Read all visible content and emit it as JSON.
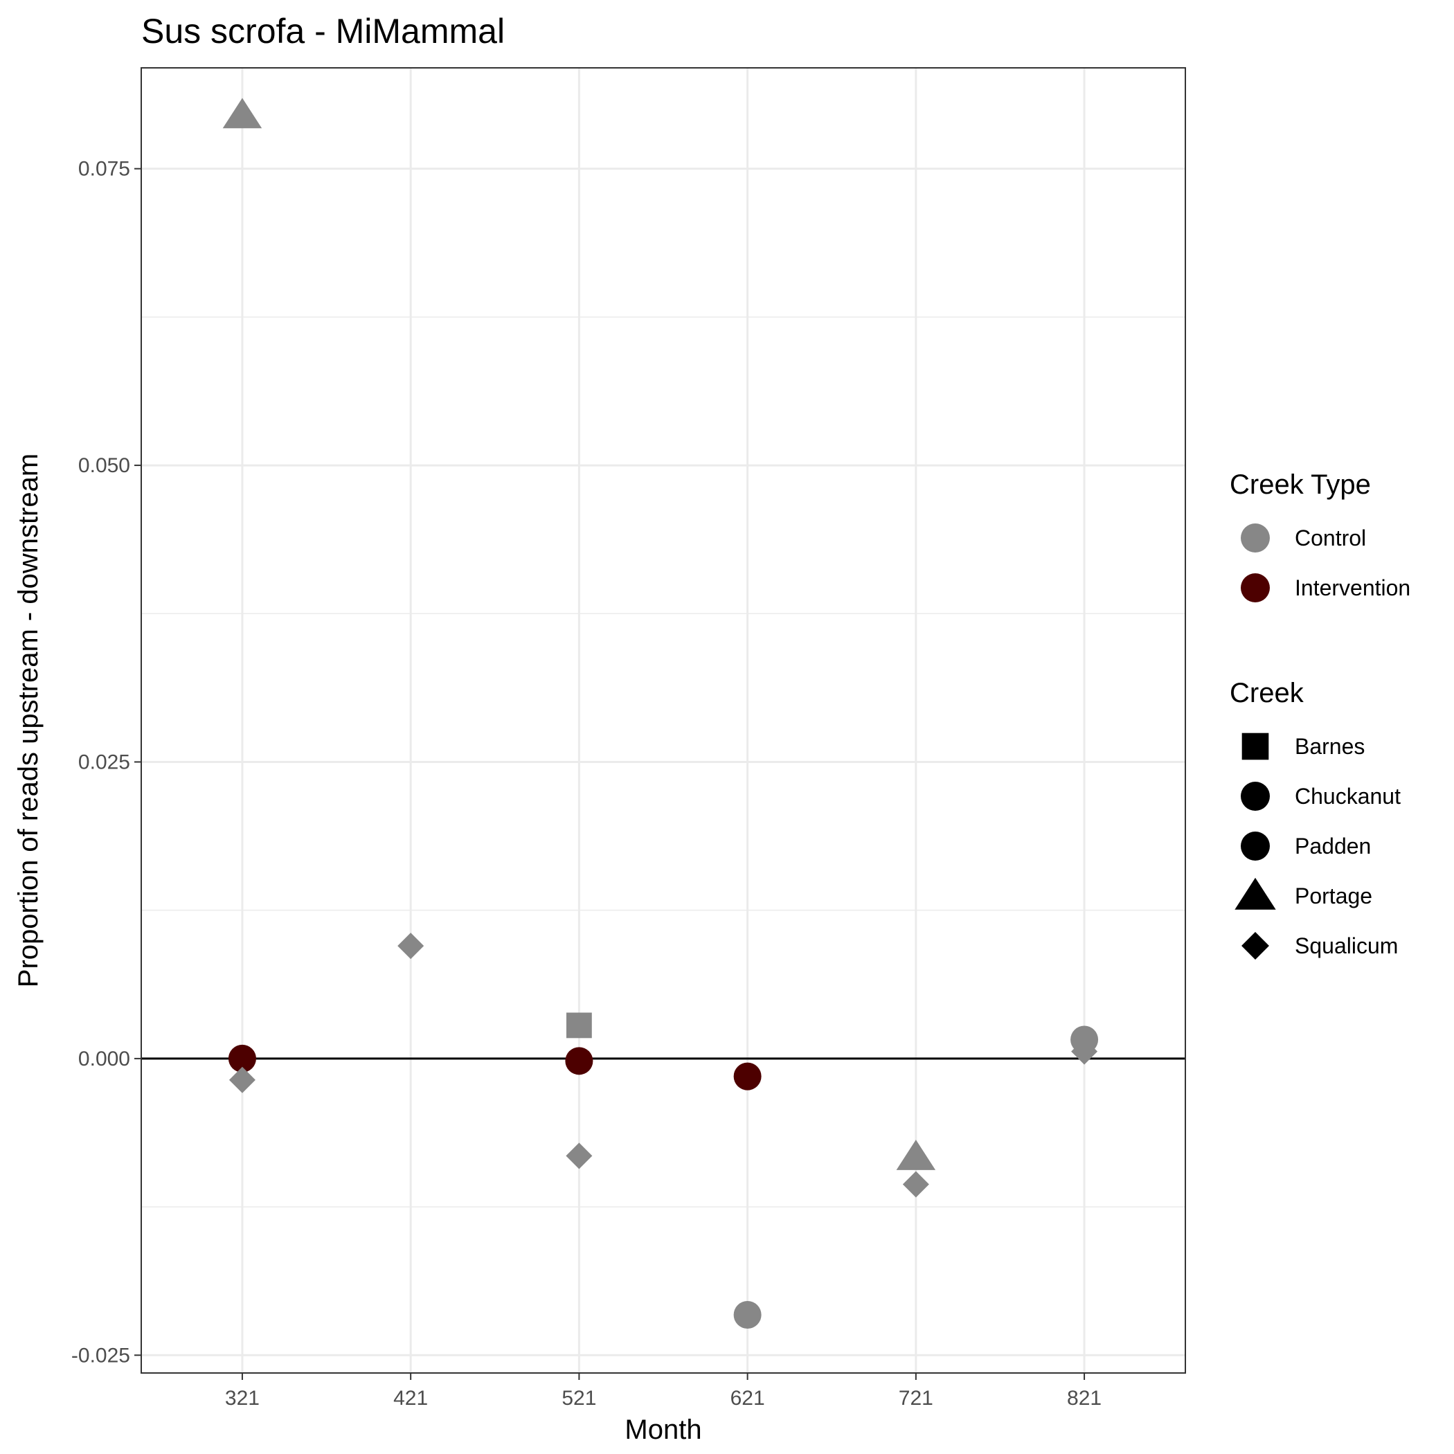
{
  "chart_data": {
    "type": "scatter",
    "title": "Sus scrofa - MiMammal",
    "xlabel": "Month",
    "ylabel": "Proportion of reads upstream - downstream",
    "x_categories": [
      "321",
      "421",
      "521",
      "621",
      "721",
      "821"
    ],
    "y_ticks": [
      -0.025,
      0.0,
      0.025,
      0.05,
      0.075
    ],
    "y_tick_labels": [
      "-0.025",
      "0.000",
      "0.025",
      "0.050",
      "0.075"
    ],
    "ylim": [
      -0.0265,
      0.0835
    ],
    "reference_line_y": 0,
    "grid": true,
    "legend_position": "right",
    "colors": {
      "Control": "#878787",
      "Intervention": "#4d0000"
    },
    "points": [
      {
        "x": "321",
        "y": 0.0795,
        "creek": "Portage",
        "type": "Control"
      },
      {
        "x": "321",
        "y": 0.0,
        "creek": "Padden",
        "type": "Intervention"
      },
      {
        "x": "321",
        "y": -0.0018,
        "creek": "Squalicum",
        "type": "Control"
      },
      {
        "x": "421",
        "y": 0.0095,
        "creek": "Squalicum",
        "type": "Control"
      },
      {
        "x": "521",
        "y": 0.0028,
        "creek": "Barnes",
        "type": "Control"
      },
      {
        "x": "521",
        "y": -0.0002,
        "creek": "Padden",
        "type": "Intervention"
      },
      {
        "x": "521",
        "y": -0.0082,
        "creek": "Squalicum",
        "type": "Control"
      },
      {
        "x": "621",
        "y": -0.0015,
        "creek": "Padden",
        "type": "Intervention"
      },
      {
        "x": "621",
        "y": -0.0216,
        "creek": "Chuckanut",
        "type": "Control"
      },
      {
        "x": "721",
        "y": -0.0083,
        "creek": "Portage",
        "type": "Control"
      },
      {
        "x": "721",
        "y": -0.0106,
        "creek": "Squalicum",
        "type": "Control"
      },
      {
        "x": "821",
        "y": 0.0016,
        "creek": "Chuckanut",
        "type": "Control"
      },
      {
        "x": "821",
        "y": 0.0006,
        "creek": "Squalicum",
        "type": "Control"
      }
    ],
    "legends": [
      {
        "title": "Creek Type",
        "entries": [
          {
            "label": "Control",
            "shape": "circle",
            "color": "#878787"
          },
          {
            "label": "Intervention",
            "shape": "circle",
            "color": "#4d0000"
          }
        ]
      },
      {
        "title": "Creek",
        "entries": [
          {
            "label": "Barnes",
            "shape": "square",
            "color": "#000000"
          },
          {
            "label": "Chuckanut",
            "shape": "circle",
            "color": "#000000"
          },
          {
            "label": "Padden",
            "shape": "circle",
            "color": "#000000"
          },
          {
            "label": "Portage",
            "shape": "triangle",
            "color": "#000000"
          },
          {
            "label": "Squalicum",
            "shape": "diamond",
            "color": "#000000"
          }
        ]
      }
    ]
  }
}
